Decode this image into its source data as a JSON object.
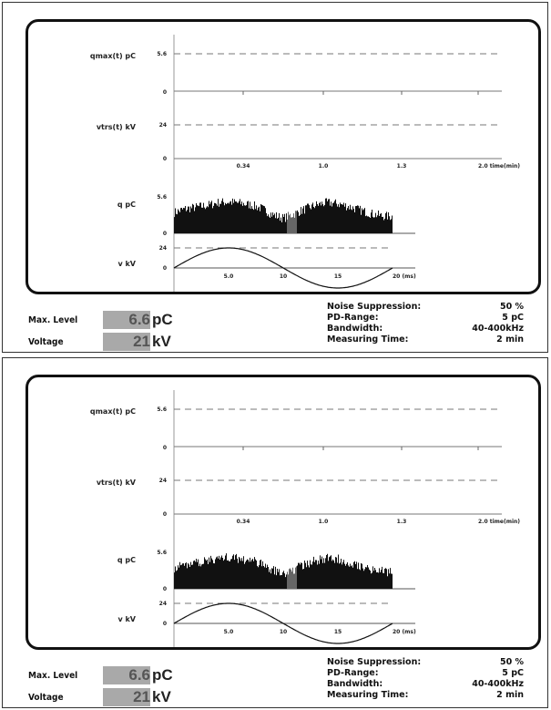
{
  "panels": [
    {
      "axis_labels": {
        "qmax": "qmax(t) pC",
        "vtrs": "vtrs(t) kV",
        "q": "q pC",
        "v": "v kV"
      },
      "trend_ticks": {
        "qmax_level": "5.6",
        "zero": "0",
        "vtrs_level": "24",
        "x_ticks": [
          "0.34",
          "1.0",
          "1.3",
          "2.0 time(min)"
        ]
      },
      "phase_ticks": {
        "q_level": "5.6",
        "q_zero": "0",
        "v_level": "24",
        "v_zero": "0",
        "x_ticks": [
          "5.0",
          "10",
          "15",
          "20 (ms)"
        ]
      },
      "readouts": {
        "max_level_label": "Max. Level",
        "max_level_value": "6.6",
        "max_level_unit": "pC",
        "voltage_label": "Voltage",
        "voltage_value": "21",
        "voltage_unit": "kV"
      },
      "settings": [
        {
          "label": "Noise Suppression:",
          "value": "50 %"
        },
        {
          "label": "PD-Range:",
          "value": "5 pC"
        },
        {
          "label": "Bandwidth:",
          "value": "40-400kHz"
        },
        {
          "label": "Measuring Time:",
          "value": "2 min"
        }
      ]
    },
    {
      "axis_labels": {
        "qmax": "qmax(t) pC",
        "vtrs": "vtrs(t) kV",
        "q": "q pC",
        "v": "v kV"
      },
      "trend_ticks": {
        "qmax_level": "5.6",
        "zero": "0",
        "vtrs_level": "24",
        "x_ticks": [
          "0.34",
          "1.0",
          "1.3",
          "2.0 time(min)"
        ]
      },
      "phase_ticks": {
        "q_level": "5.6",
        "q_zero": "0",
        "v_level": "24",
        "v_zero": "0",
        "x_ticks": [
          "5.0",
          "10",
          "15",
          "20 (ms)"
        ]
      },
      "readouts": {
        "max_level_label": "Max. Level",
        "max_level_value": "6.6",
        "max_level_unit": "pC",
        "voltage_label": "Voltage",
        "voltage_value": "21",
        "voltage_unit": "kV"
      },
      "settings": [
        {
          "label": "Noise Suppression:",
          "value": "50 %"
        },
        {
          "label": "PD-Range:",
          "value": "5 pC"
        },
        {
          "label": "Bandwidth:",
          "value": "40-400kHz"
        },
        {
          "label": "Measuring Time:",
          "value": "2 min"
        }
      ]
    }
  ],
  "chart_data": [
    {
      "type": "area",
      "title": "",
      "xlabel": "(ms)",
      "ylabel": "q pC",
      "x_range": [
        0,
        20
      ],
      "ylim": [
        0,
        6.6
      ],
      "grid": false,
      "profile_x": [
        0,
        1,
        2,
        3,
        4,
        5,
        6,
        7,
        8,
        9,
        10,
        11,
        12,
        13,
        14,
        15,
        16,
        17,
        18,
        19,
        20
      ],
      "profile_q": [
        3.6,
        4.2,
        4.5,
        4.8,
        5.3,
        5.4,
        5.2,
        4.9,
        4.3,
        3.2,
        2.6,
        3.4,
        4.2,
        4.9,
        5.3,
        5.1,
        4.6,
        4.0,
        3.4,
        3.0,
        2.9
      ]
    },
    {
      "type": "line",
      "title": "",
      "xlabel": "(ms)",
      "ylabel": "v kV",
      "x_range": [
        0,
        20
      ],
      "ylim": [
        -24,
        24
      ],
      "grid": false,
      "series": [
        {
          "waveform": "sine",
          "amplitude_kV": 21,
          "period_ms": 20
        }
      ]
    }
  ]
}
